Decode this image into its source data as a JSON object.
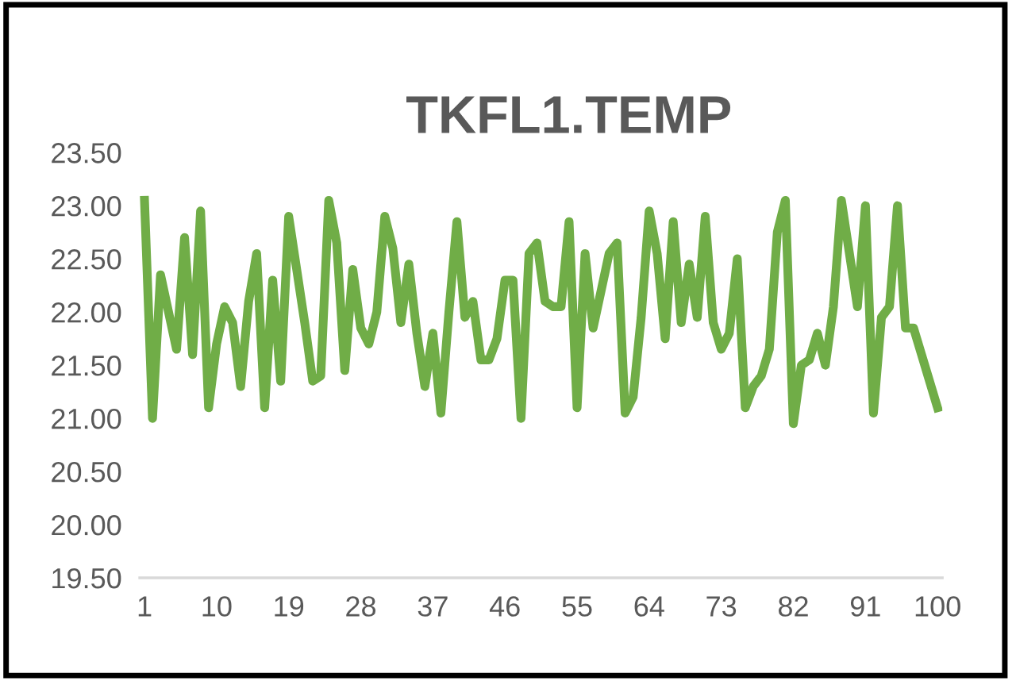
{
  "chart_data": {
    "type": "line",
    "title": "TKFL1.TEMP",
    "categories": [
      "1",
      null,
      null,
      null,
      null,
      null,
      null,
      null,
      null,
      "10",
      null,
      null,
      null,
      null,
      null,
      null,
      null,
      null,
      "19",
      null,
      null,
      null,
      null,
      null,
      null,
      null,
      null,
      "28",
      null,
      null,
      null,
      null,
      null,
      null,
      null,
      null,
      "37",
      null,
      null,
      null,
      null,
      null,
      null,
      null,
      null,
      "46",
      null,
      null,
      null,
      null,
      null,
      null,
      null,
      null,
      "55",
      null,
      null,
      null,
      null,
      null,
      null,
      null,
      null,
      "64",
      null,
      null,
      null,
      null,
      null,
      null,
      null,
      null,
      "73",
      null,
      null,
      null,
      null,
      null,
      null,
      null,
      null,
      "82",
      null,
      null,
      null,
      null,
      null,
      null,
      null,
      null,
      "91",
      null,
      null,
      null,
      null,
      null,
      null,
      null,
      null,
      "100"
    ],
    "series": [
      {
        "color": "#70ad47",
        "values": [
          23.05,
          21.0,
          22.35,
          22.0,
          21.65,
          22.7,
          21.6,
          22.95,
          21.1,
          21.7,
          22.05,
          21.9,
          21.3,
          22.1,
          22.55,
          21.1,
          22.3,
          21.35,
          22.9,
          22.4,
          21.9,
          21.35,
          21.4,
          23.05,
          22.65,
          21.45,
          22.4,
          21.85,
          21.7,
          22.0,
          22.9,
          22.6,
          21.9,
          22.45,
          21.8,
          21.3,
          21.8,
          21.05,
          22.0,
          22.85,
          21.95,
          22.1,
          21.55,
          21.55,
          21.75,
          22.3,
          22.3,
          21.0,
          22.55,
          22.65,
          22.1,
          22.05,
          22.05,
          22.85,
          21.1,
          22.55,
          21.85,
          22.2,
          22.55,
          22.65,
          21.05,
          21.2,
          21.95,
          22.95,
          22.55,
          21.75,
          22.85,
          21.9,
          22.45,
          21.95,
          22.9,
          21.9,
          21.65,
          21.8,
          22.5,
          21.1,
          21.3,
          21.4,
          21.65,
          22.75,
          23.05,
          20.95,
          21.5,
          21.55,
          21.8,
          21.5,
          22.05,
          23.05,
          22.55,
          22.05,
          23.0,
          21.05,
          21.95,
          22.05,
          23.0,
          21.85,
          21.85,
          21.6,
          21.35,
          21.1
        ]
      }
    ],
    "ylim": [
      19.5,
      23.5
    ],
    "yticks": [
      {
        "value": 19.5,
        "label": "19.50"
      },
      {
        "value": 20.0,
        "label": "20.00"
      },
      {
        "value": 20.5,
        "label": "20.50"
      },
      {
        "value": 21.0,
        "label": "21.00"
      },
      {
        "value": 21.5,
        "label": "21.50"
      },
      {
        "value": 22.0,
        "label": "22.00"
      },
      {
        "value": 22.5,
        "label": "22.50"
      },
      {
        "value": 23.0,
        "label": "23.00"
      },
      {
        "value": 23.5,
        "label": "23.50"
      }
    ],
    "grid": false,
    "marker": "none",
    "line_style": "solid"
  }
}
